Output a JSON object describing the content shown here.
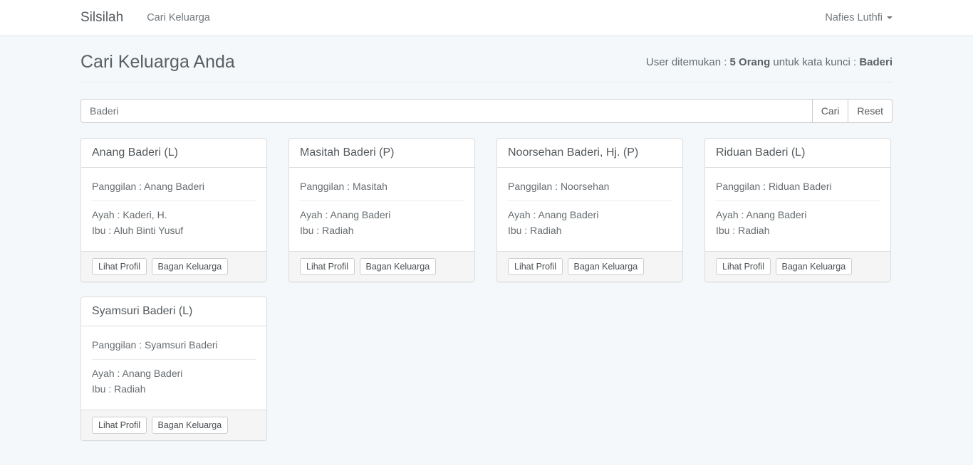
{
  "navbar": {
    "brand": "Silsilah",
    "items": [
      {
        "label": "Cari Keluarga"
      }
    ],
    "user_menu": {
      "label": "Nafies Luthfi"
    }
  },
  "page": {
    "title": "Cari Keluarga Anda",
    "result_summary": {
      "prefix": "User ditemukan : ",
      "count": "5 Orang",
      "middle": " untuk kata kunci : ",
      "keyword": "Baderi"
    }
  },
  "search": {
    "value": "Baderi",
    "cari_label": "Cari",
    "reset_label": "Reset"
  },
  "labels": {
    "lihat_profil": "Lihat Profil",
    "bagan_keluarga": "Bagan Keluarga"
  },
  "cards": [
    {
      "title": "Anang Baderi (L)",
      "panggilan": "Panggilan : Anang Baderi",
      "ayah": "Ayah : Kaderi, H.",
      "ibu": "Ibu : Aluh Binti Yusuf"
    },
    {
      "title": "Masitah Baderi (P)",
      "panggilan": "Panggilan : Masitah",
      "ayah": "Ayah : Anang Baderi",
      "ibu": "Ibu : Radiah"
    },
    {
      "title": "Noorsehan Baderi, Hj. (P)",
      "panggilan": "Panggilan : Noorsehan",
      "ayah": "Ayah : Anang Baderi",
      "ibu": "Ibu : Radiah"
    },
    {
      "title": "Riduan Baderi (L)",
      "panggilan": "Panggilan : Riduan Baderi",
      "ayah": "Ayah : Anang Baderi",
      "ibu": "Ibu : Radiah"
    },
    {
      "title": "Syamsuri Baderi (L)",
      "panggilan": "Panggilan : Syamsuri Baderi",
      "ayah": "Ayah : Anang Baderi",
      "ibu": "Ibu : Radiah"
    }
  ]
}
